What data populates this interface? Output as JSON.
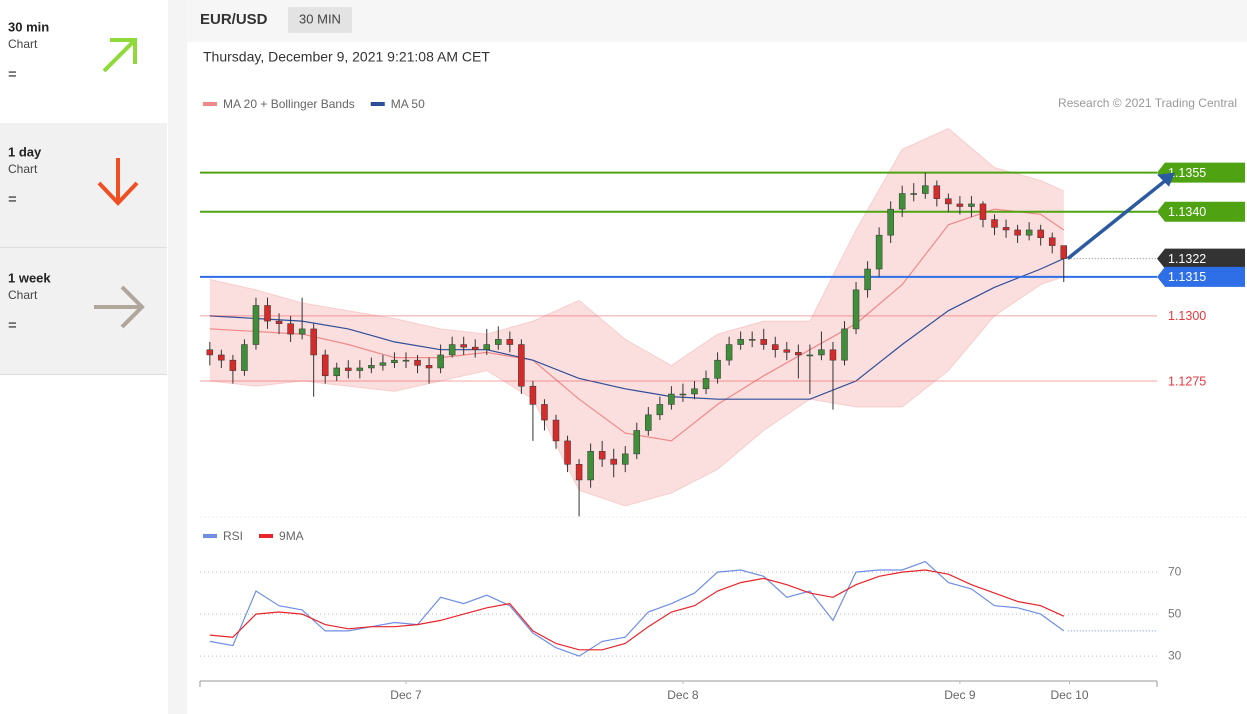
{
  "sidebar": [
    {
      "period": "30 min",
      "caption": "Chart",
      "signal": "="
    },
    {
      "period": "1 day",
      "caption": "Chart",
      "signal": "="
    },
    {
      "period": "1 week",
      "caption": "Chart",
      "signal": "="
    }
  ],
  "header": {
    "symbol": "EUR/USD",
    "interval": "30 MIN",
    "timestamp": "Thursday, December 9, 2021 9:21:08 AM CET"
  },
  "chart_data": [
    {
      "type": "candlestick",
      "source": "Research © 2021 Trading Central",
      "up_color": "#3f8f3a",
      "down_color": "#d42b2b",
      "xlim": [
        -17.85,
        65.08
      ],
      "ylim": [
        1.1222,
        1.1376
      ],
      "x": [
        -17,
        -16,
        -15,
        -14,
        -13,
        -12,
        -11,
        -10,
        -9,
        -8,
        -7,
        -6,
        -5,
        -4,
        -3,
        -2,
        -1,
        0,
        1,
        2,
        3,
        4,
        5,
        6,
        7,
        8,
        9,
        10,
        11,
        12,
        13,
        14,
        15,
        16,
        17,
        18,
        19,
        20,
        21,
        22,
        23,
        24,
        25,
        26,
        27,
        28,
        29,
        30,
        31,
        32,
        33,
        34,
        35,
        36,
        37,
        38,
        39,
        40,
        41,
        42,
        43,
        44,
        45,
        46,
        47,
        48,
        49,
        50,
        51,
        52,
        53,
        54,
        55,
        56,
        57
      ],
      "open": [
        1.1287,
        1.1285,
        1.1283,
        1.1279,
        1.1289,
        1.1304,
        1.1298,
        1.1297,
        1.1293,
        1.1295,
        1.1285,
        1.1277,
        1.128,
        1.1279,
        1.128,
        1.1281,
        1.1282,
        1.1283,
        1.1283,
        1.1281,
        1.128,
        1.1285,
        1.1289,
        1.1288,
        1.1287,
        1.1289,
        1.1291,
        1.1289,
        1.1273,
        1.1266,
        1.126,
        1.1252,
        1.1243,
        1.1237,
        1.1248,
        1.1245,
        1.1243,
        1.1247,
        1.1256,
        1.1262,
        1.1266,
        1.127,
        1.127,
        1.1272,
        1.1276,
        1.1283,
        1.1289,
        1.1291,
        1.1291,
        1.1289,
        1.1287,
        1.1286,
        1.1285,
        1.1285,
        1.1287,
        1.1283,
        1.1295,
        1.131,
        1.1318,
        1.1331,
        1.1341,
        1.1347,
        1.1347,
        1.135,
        1.1345,
        1.1343,
        1.1342,
        1.1343,
        1.1337,
        1.1334,
        1.1333,
        1.1331,
        1.1333,
        1.133,
        1.1327
      ],
      "high": [
        1.129,
        1.1287,
        1.1285,
        1.1291,
        1.1307,
        1.1307,
        1.1301,
        1.13,
        1.1307,
        1.1297,
        1.1287,
        1.1282,
        1.1283,
        1.1283,
        1.1284,
        1.1285,
        1.1286,
        1.1286,
        1.1285,
        1.1284,
        1.1289,
        1.1292,
        1.1292,
        1.1291,
        1.1295,
        1.1296,
        1.1294,
        1.1291,
        1.1275,
        1.1268,
        1.1262,
        1.1254,
        1.1245,
        1.1251,
        1.1252,
        1.1249,
        1.125,
        1.1259,
        1.1265,
        1.1269,
        1.1273,
        1.1274,
        1.1275,
        1.1279,
        1.1286,
        1.1292,
        1.1294,
        1.1294,
        1.1295,
        1.1292,
        1.129,
        1.1289,
        1.1289,
        1.1294,
        1.129,
        1.1298,
        1.1313,
        1.1321,
        1.1334,
        1.1344,
        1.135,
        1.1351,
        1.1355,
        1.1352,
        1.1347,
        1.1346,
        1.1346,
        1.1344,
        1.1339,
        1.1337,
        1.1335,
        1.1336,
        1.1335,
        1.1332,
        1.1326
      ],
      "low": [
        1.1281,
        1.128,
        1.1274,
        1.1277,
        1.1287,
        1.1295,
        1.1293,
        1.129,
        1.1291,
        1.1269,
        1.1274,
        1.1275,
        1.1276,
        1.1276,
        1.1278,
        1.1279,
        1.128,
        1.128,
        1.1278,
        1.1274,
        1.1278,
        1.1284,
        1.1285,
        1.1284,
        1.1285,
        1.1287,
        1.1286,
        1.127,
        1.1252,
        1.1256,
        1.1249,
        1.124,
        1.1223,
        1.1234,
        1.1242,
        1.1238,
        1.124,
        1.1245,
        1.1254,
        1.126,
        1.1264,
        1.1267,
        1.1268,
        1.127,
        1.1274,
        1.1281,
        1.1287,
        1.1288,
        1.1287,
        1.1284,
        1.1283,
        1.1276,
        1.127,
        1.1283,
        1.1264,
        1.1281,
        1.1293,
        1.1307,
        1.1315,
        1.1328,
        1.1338,
        1.1344,
        1.1345,
        1.1342,
        1.134,
        1.1339,
        1.1338,
        1.1334,
        1.1331,
        1.133,
        1.1328,
        1.1329,
        1.1327,
        1.1324,
        1.1313
      ],
      "close": [
        1.1285,
        1.1283,
        1.1279,
        1.1289,
        1.1304,
        1.1298,
        1.1297,
        1.1293,
        1.1295,
        1.1285,
        1.1277,
        1.128,
        1.1279,
        1.128,
        1.1281,
        1.1282,
        1.1283,
        1.1283,
        1.1281,
        1.128,
        1.1285,
        1.1289,
        1.1288,
        1.1287,
        1.1289,
        1.1291,
        1.1289,
        1.1273,
        1.1266,
        1.126,
        1.1252,
        1.1243,
        1.1237,
        1.1248,
        1.1245,
        1.1243,
        1.1247,
        1.1256,
        1.1262,
        1.1266,
        1.127,
        1.127,
        1.1272,
        1.1276,
        1.1283,
        1.1289,
        1.1291,
        1.1291,
        1.1289,
        1.1287,
        1.1286,
        1.1285,
        1.1285,
        1.1287,
        1.1283,
        1.1295,
        1.131,
        1.1318,
        1.1331,
        1.1341,
        1.1347,
        1.1347,
        1.135,
        1.1345,
        1.1343,
        1.1342,
        1.1343,
        1.1337,
        1.1334,
        1.1333,
        1.1331,
        1.1333,
        1.133,
        1.1327,
        1.1322
      ],
      "series": [
        {
          "name": "MA 20 + Bollinger Bands",
          "color": "#f08a8a",
          "x": [
            -17,
            -13,
            -9,
            -5,
            -1,
            3,
            7,
            11,
            15,
            19,
            23,
            27,
            31,
            35,
            39,
            43,
            47,
            51,
            55,
            57
          ],
          "values": [
            1.1295,
            1.1294,
            1.1293,
            1.1289,
            1.1284,
            1.1284,
            1.1286,
            1.1283,
            1.1268,
            1.1255,
            1.1252,
            1.1266,
            1.1277,
            1.1287,
            1.1297,
            1.1312,
            1.1335,
            1.1341,
            1.1339,
            1.1333
          ],
          "upper": [
            1.1314,
            1.131,
            1.1305,
            1.1302,
            1.1299,
            1.1295,
            1.1293,
            1.1298,
            1.1306,
            1.1291,
            1.1281,
            1.1293,
            1.1298,
            1.1298,
            1.1333,
            1.1364,
            1.1372,
            1.1357,
            1.1352,
            1.1348
          ],
          "lower": [
            1.1275,
            1.1273,
            1.1275,
            1.1273,
            1.1271,
            1.1275,
            1.1279,
            1.1268,
            1.1233,
            1.1227,
            1.1232,
            1.1241,
            1.1256,
            1.1268,
            1.1265,
            1.1265,
            1.1279,
            1.13,
            1.1312,
            1.1315
          ]
        },
        {
          "name": "MA 50",
          "color": "#2f4f9a",
          "x": [
            -17,
            -13,
            -9,
            -5,
            -1,
            3,
            7,
            11,
            15,
            19,
            23,
            27,
            31,
            35,
            39,
            43,
            47,
            51,
            55,
            57
          ],
          "values": [
            1.13,
            1.1299,
            1.1298,
            1.1295,
            1.129,
            1.1287,
            1.1287,
            1.1283,
            1.1276,
            1.1272,
            1.1269,
            1.1268,
            1.1268,
            1.1268,
            1.1275,
            1.1289,
            1.1302,
            1.1311,
            1.1318,
            1.1322
          ]
        }
      ],
      "levels": [
        {
          "value": 1.1355,
          "label": "1.1355",
          "color": "#4fa312",
          "badge": true
        },
        {
          "value": 1.134,
          "label": "1.1340",
          "color": "#4fa312",
          "badge": true
        },
        {
          "value": 1.1322,
          "label": "1.1322",
          "color": "#333333",
          "badge": true,
          "dotted": true
        },
        {
          "value": 1.1315,
          "label": "1.1315",
          "color": "#2e6ee6",
          "badge": true
        },
        {
          "value": 1.13,
          "label": "1.1300",
          "color": "#e8383d",
          "badge": false
        },
        {
          "value": 1.1275,
          "label": "1.1275",
          "color": "#e8383d",
          "badge": false
        }
      ]
    },
    {
      "type": "line",
      "xlim": [
        -17.85,
        65.08
      ],
      "ylim": [
        21,
        81
      ],
      "yticks": [
        30,
        50,
        70
      ],
      "xticks": [
        {
          "value": 0,
          "label": "Dec 7"
        },
        {
          "value": 24,
          "label": "Dec 8"
        },
        {
          "value": 48,
          "label": "Dec 9"
        },
        {
          "value": 57.5,
          "label": "Dec 10"
        }
      ],
      "x": [
        -17,
        -15,
        -13,
        -11,
        -9,
        -7,
        -5,
        -3,
        -1,
        1,
        3,
        5,
        7,
        9,
        11,
        13,
        15,
        17,
        19,
        21,
        23,
        25,
        27,
        29,
        31,
        33,
        35,
        37,
        39,
        41,
        43,
        45,
        47,
        49,
        51,
        53,
        55,
        57
      ],
      "series": [
        {
          "name": "RSI",
          "color": "#6f8fe6",
          "values": [
            37,
            35,
            61,
            54,
            52,
            42,
            42,
            44,
            46,
            45,
            58,
            55,
            59,
            54,
            41,
            34,
            30,
            37,
            39,
            51,
            55,
            60,
            70,
            71,
            68,
            58,
            61,
            47,
            70,
            71,
            71,
            75,
            65,
            62,
            54,
            53,
            50,
            42
          ]
        },
        {
          "name": "9MA",
          "color": "#e8232a",
          "values": [
            40,
            39,
            50,
            51,
            50,
            45,
            43,
            44,
            44,
            45,
            47,
            50,
            53,
            55,
            42,
            36,
            33,
            33,
            36,
            44,
            51,
            54,
            61,
            65,
            67,
            64,
            60,
            58,
            64,
            68,
            70,
            71,
            69,
            64,
            60,
            56,
            54,
            49
          ]
        }
      ]
    }
  ]
}
